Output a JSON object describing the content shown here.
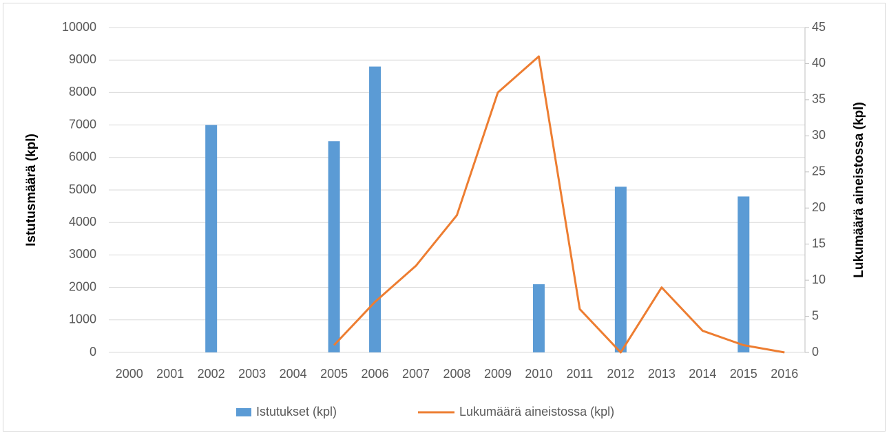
{
  "chart_data": {
    "type": "bar-line",
    "categories": [
      "2000",
      "2001",
      "2002",
      "2003",
      "2004",
      "2005",
      "2006",
      "2007",
      "2008",
      "2009",
      "2010",
      "2011",
      "2012",
      "2013",
      "2014",
      "2015",
      "2016"
    ],
    "series": [
      {
        "name": "Istutukset (kpl)",
        "type": "bar",
        "color": "#5b9bd5",
        "values": [
          null,
          null,
          7000,
          null,
          null,
          6500,
          8800,
          null,
          null,
          null,
          2100,
          null,
          5100,
          null,
          null,
          4800,
          null
        ]
      },
      {
        "name": "Lukumäärä aineistossa (kpl)",
        "type": "line",
        "axis": "y2",
        "color": "#ed7d31",
        "values": [
          null,
          null,
          null,
          null,
          null,
          1,
          7,
          12,
          19,
          36,
          41,
          6,
          0,
          9,
          3,
          1,
          0
        ]
      }
    ],
    "ylabel": "Istutusmäärä (kpl)",
    "y2label": "Lukumäärä aineistossa (kpl)",
    "ylim": [
      0,
      10000
    ],
    "yticks": [
      0,
      1000,
      2000,
      3000,
      4000,
      5000,
      6000,
      7000,
      8000,
      9000,
      10000
    ],
    "y2lim": [
      0,
      45
    ],
    "y2ticks": [
      0,
      5,
      10,
      15,
      20,
      25,
      30,
      35,
      40,
      45
    ],
    "grid": true,
    "legend": "bottom"
  }
}
